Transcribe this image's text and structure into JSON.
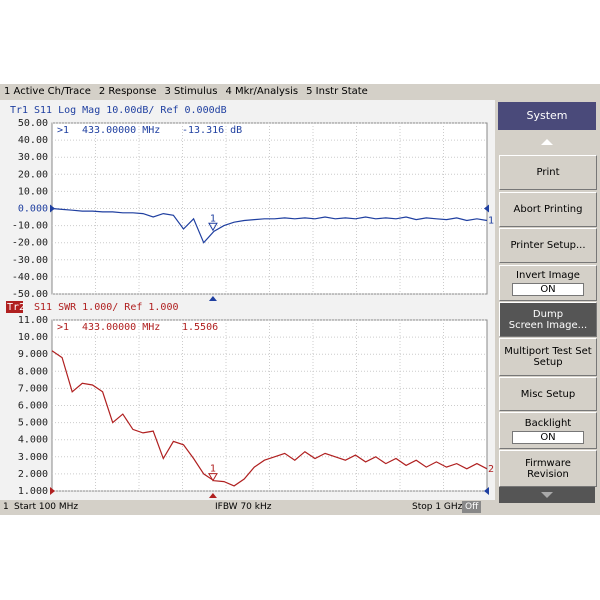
{
  "menu": [
    "1 Active Ch/Trace",
    "2 Response",
    "3 Stimulus",
    "4 Mkr/Analysis",
    "5 Instr State"
  ],
  "traces": [
    {
      "id": "Tr1",
      "header": "S11 Log Mag 10.00dB/ Ref 0.000dB",
      "color": "#1f3fa0",
      "end_label": "1",
      "ylim": [
        -50,
        50
      ],
      "yticks": [
        {
          "value": 50,
          "label": "50.00"
        },
        {
          "value": 40,
          "label": "40.00"
        },
        {
          "value": 30,
          "label": "30.00"
        },
        {
          "value": 20,
          "label": "20.00"
        },
        {
          "value": 10,
          "label": "10.00"
        },
        {
          "value": 0,
          "label": "0.000"
        },
        {
          "value": -10,
          "label": "-10.00"
        },
        {
          "value": -20,
          "label": "-20.00"
        },
        {
          "value": -30,
          "label": "-30.00"
        },
        {
          "value": -40,
          "label": "-40.00"
        },
        {
          "value": -50,
          "label": "-50.00"
        }
      ],
      "values": [
        0,
        -0.5,
        -1,
        -1.5,
        -1.5,
        -2,
        -2,
        -2.5,
        -2.5,
        -3,
        -5,
        -3,
        -4,
        -12,
        -6,
        -20,
        -13.316,
        -10,
        -8,
        -7,
        -6.5,
        -6,
        -6,
        -5.5,
        -6,
        -5.5,
        -6,
        -5,
        -6,
        -5.5,
        -6,
        -5,
        -6,
        -5.5,
        -6,
        -5,
        -6.5,
        -5.5,
        -6,
        -6.5,
        -5.5,
        -7,
        -6,
        -7
      ],
      "marker": {
        "label": ">1",
        "number": "1",
        "x": 433,
        "x_label": "433.00000 MHz",
        "y": -13.316,
        "y_label": "-13.316 dB"
      }
    },
    {
      "id": "Tr2",
      "header": "S11 SWR 1.000/ Ref 1.000",
      "color": "#b02020",
      "end_label": "2",
      "ylim": [
        1,
        11
      ],
      "yticks": [
        {
          "value": 11,
          "label": "11.00"
        },
        {
          "value": 10,
          "label": "10.00"
        },
        {
          "value": 9,
          "label": "9.000"
        },
        {
          "value": 8,
          "label": "8.000"
        },
        {
          "value": 7,
          "label": "7.000"
        },
        {
          "value": 6,
          "label": "6.000"
        },
        {
          "value": 5,
          "label": "5.000"
        },
        {
          "value": 4,
          "label": "4.000"
        },
        {
          "value": 3,
          "label": "3.000"
        },
        {
          "value": 2,
          "label": "2.000"
        },
        {
          "value": 1,
          "label": "1.000"
        }
      ],
      "values": [
        9.2,
        8.8,
        6.8,
        7.3,
        7.2,
        6.8,
        5.0,
        5.5,
        4.6,
        4.4,
        4.5,
        2.9,
        3.9,
        3.7,
        2.9,
        2.0,
        1.6,
        1.5506,
        1.3,
        1.7,
        2.4,
        2.8,
        3.0,
        3.2,
        2.8,
        3.3,
        2.9,
        3.2,
        3.0,
        2.8,
        3.1,
        2.7,
        3.0,
        2.6,
        2.9,
        2.5,
        2.8,
        2.4,
        2.7,
        2.4,
        2.6,
        2.3,
        2.6,
        2.3
      ],
      "marker": {
        "label": ">1",
        "number": "1",
        "x": 433,
        "x_label": "433.00000 MHz",
        "y": 1.5506,
        "y_label": "1.5506"
      }
    }
  ],
  "xlim": [
    100,
    1000
  ],
  "status": {
    "channel": "1",
    "start": "Start 100 MHz",
    "ifbw": "IFBW 70 kHz",
    "stop": "Stop 1 GHz",
    "state": "Off"
  },
  "panel": {
    "title": "System",
    "buttons": [
      {
        "lines": [
          "Print"
        ]
      },
      {
        "lines": [
          "Abort Printing"
        ]
      },
      {
        "lines": [
          "Printer Setup..."
        ]
      },
      {
        "lines": [
          "Invert Image"
        ],
        "state": "ON"
      },
      {
        "lines": [
          "Dump",
          "Screen Image..."
        ],
        "dark": true
      },
      {
        "lines": [
          "Multiport Test Set",
          "Setup"
        ]
      },
      {
        "lines": [
          "Misc Setup"
        ]
      },
      {
        "lines": [
          "Backlight"
        ],
        "state": "ON"
      },
      {
        "lines": [
          "Firmware",
          "Revision"
        ]
      }
    ]
  }
}
